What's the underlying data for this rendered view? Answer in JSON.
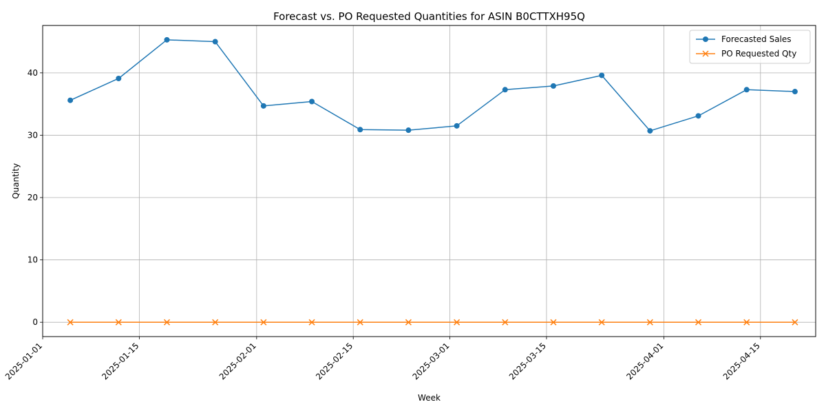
{
  "chart_data": {
    "type": "line",
    "title": "Forecast vs. PO Requested Quantities for ASIN B0CTTXH95Q",
    "xlabel": "Week",
    "ylabel": "Quantity",
    "x": [
      "2025-01-05",
      "2025-01-12",
      "2025-01-19",
      "2025-01-26",
      "2025-02-02",
      "2025-02-09",
      "2025-02-16",
      "2025-02-23",
      "2025-03-02",
      "2025-03-09",
      "2025-03-16",
      "2025-03-23",
      "2025-03-30",
      "2025-04-06",
      "2025-04-13",
      "2025-04-20"
    ],
    "xlim": [
      "2025-01-01",
      "2025-04-23"
    ],
    "ylim": [
      -2.3,
      47.6
    ],
    "x_ticks": [
      "2025-01-01",
      "2025-01-15",
      "2025-02-01",
      "2025-02-15",
      "2025-03-01",
      "2025-03-15",
      "2025-04-01",
      "2025-04-15"
    ],
    "y_ticks": [
      0,
      10,
      20,
      30,
      40
    ],
    "grid": true,
    "legend": "top-right",
    "series": [
      {
        "name": "Forecasted Sales",
        "marker": "circle",
        "color": "#1f77b4",
        "values": [
          35.6,
          39.1,
          45.3,
          45.0,
          34.7,
          35.4,
          30.9,
          30.8,
          31.5,
          37.3,
          37.9,
          39.6,
          30.7,
          33.1,
          37.3,
          37.0
        ]
      },
      {
        "name": "PO Requested Qty",
        "marker": "x",
        "color": "#ff7f0e",
        "values": [
          0,
          0,
          0,
          0,
          0,
          0,
          0,
          0,
          0,
          0,
          0,
          0,
          0,
          0,
          0,
          0
        ]
      }
    ]
  }
}
